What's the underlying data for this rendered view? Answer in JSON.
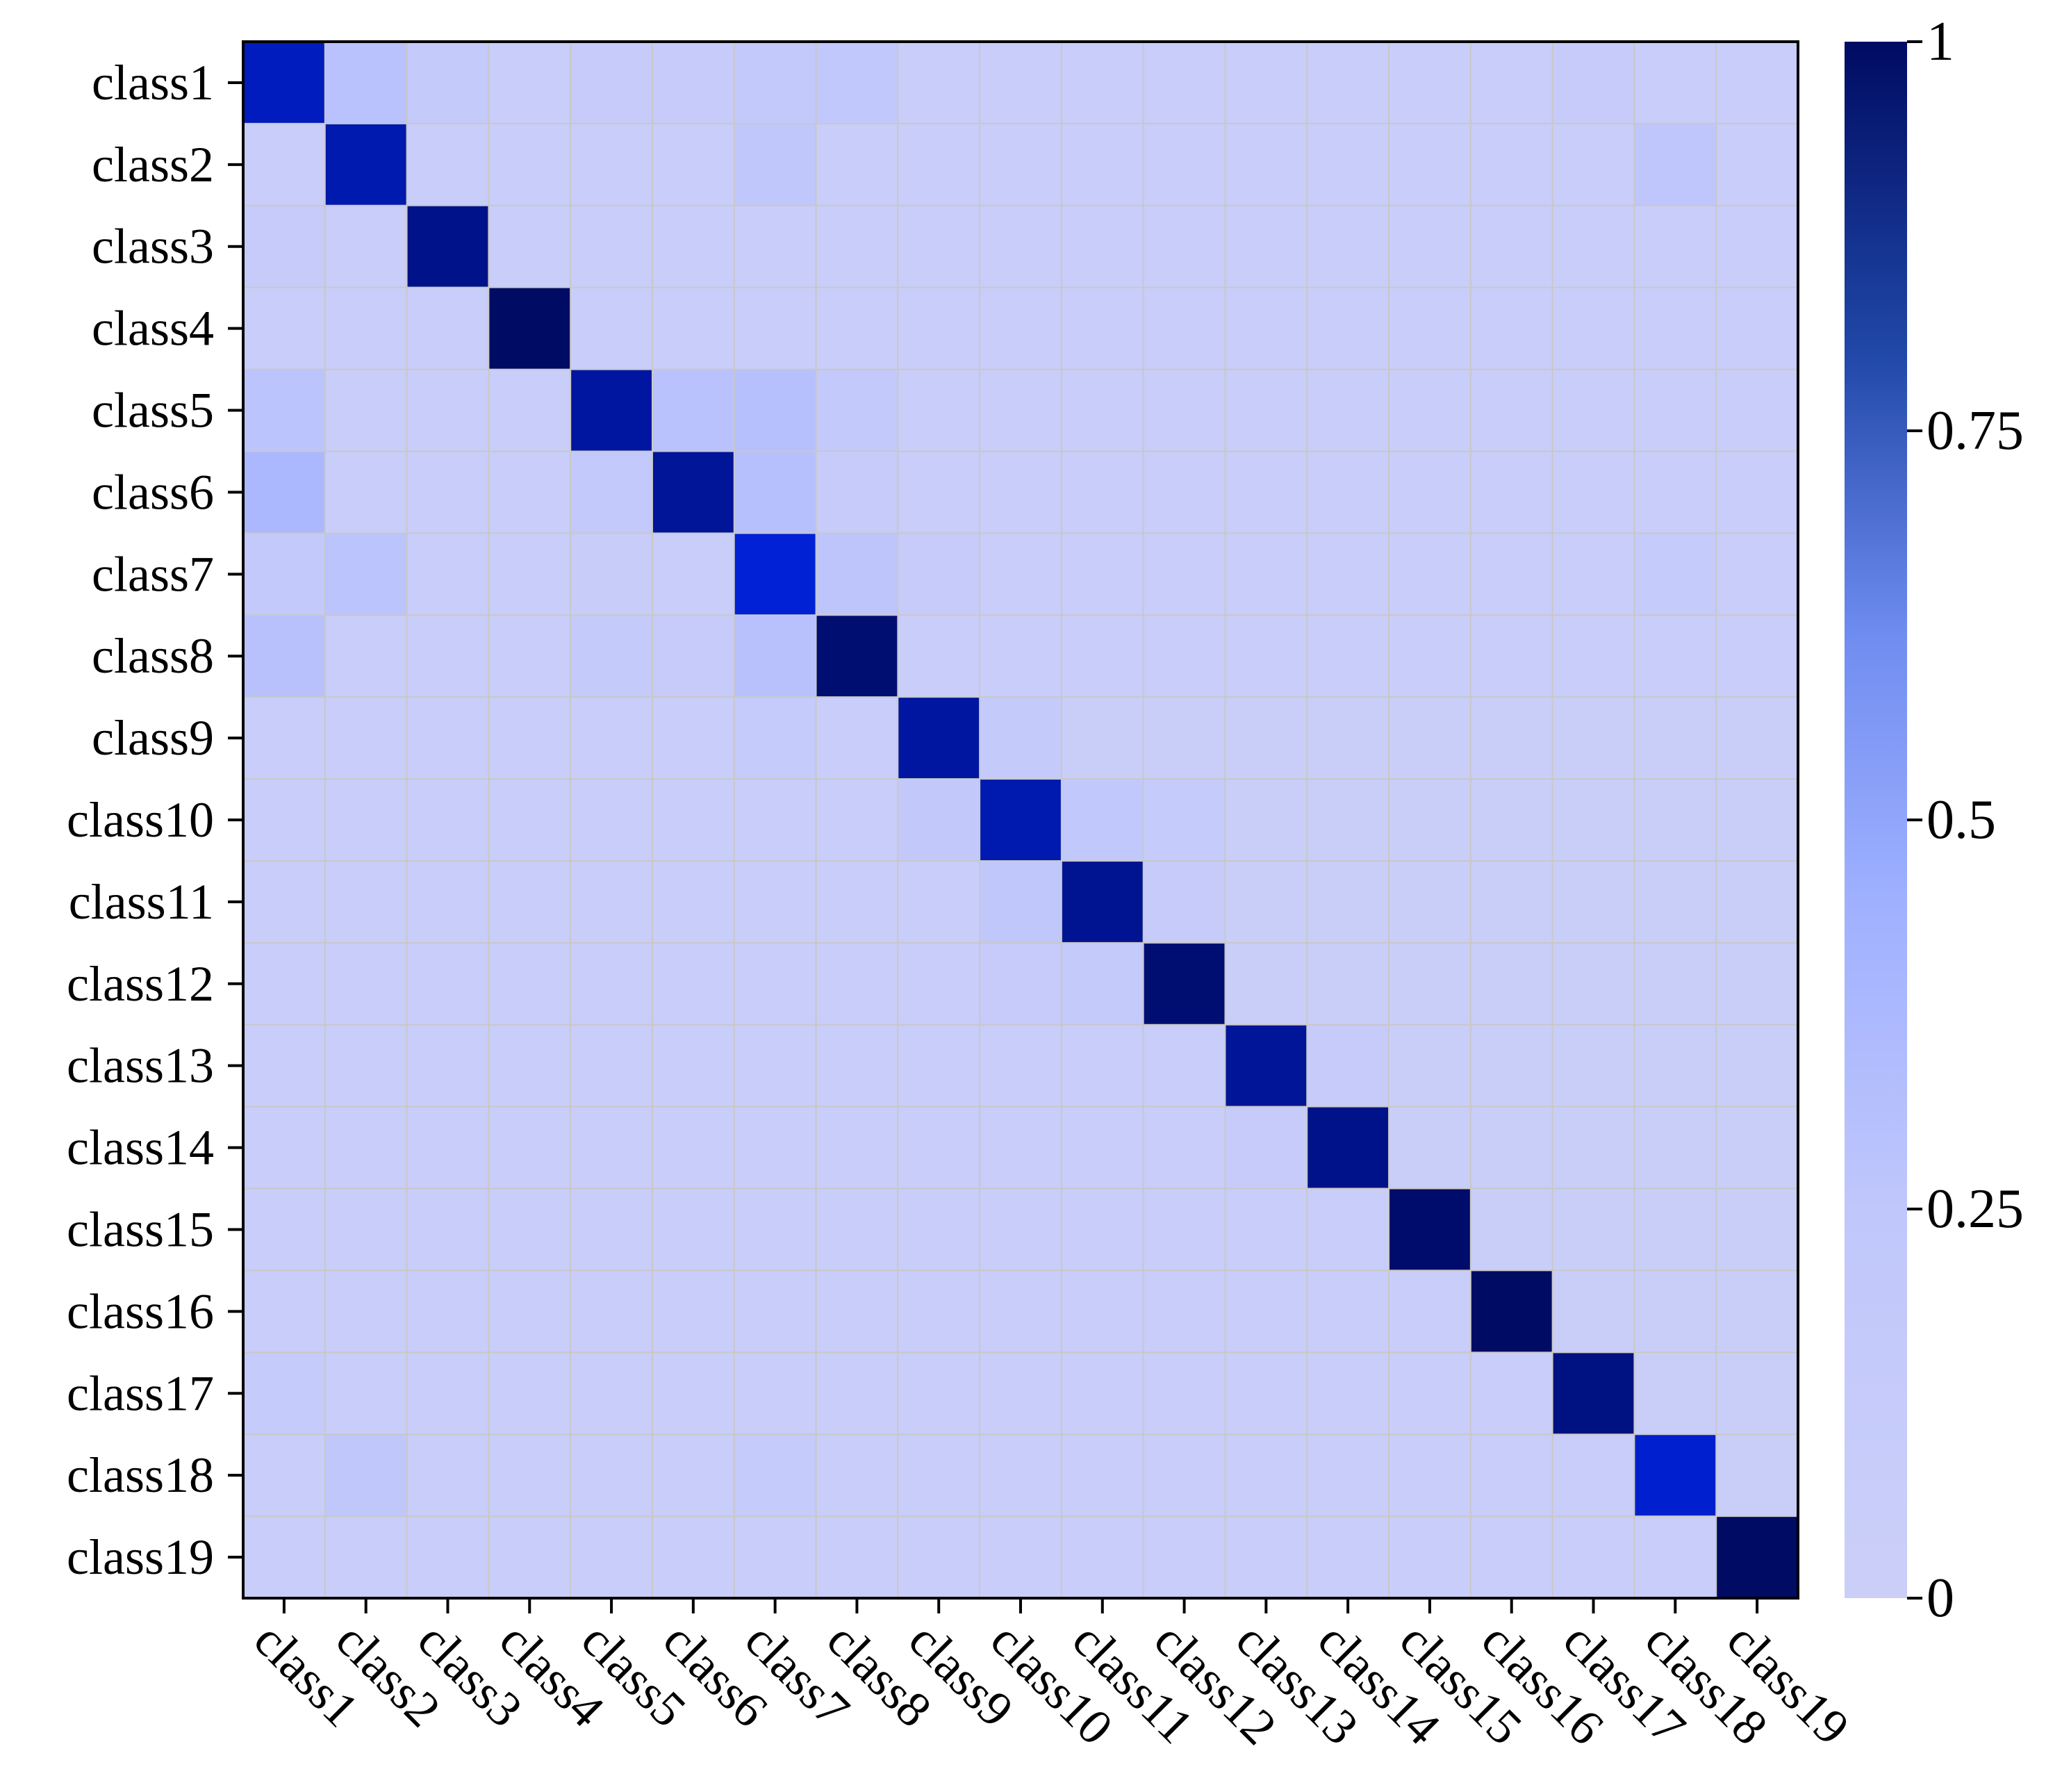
{
  "chart_data": {
    "type": "heatmap",
    "title": "",
    "xlabel": "",
    "ylabel": "",
    "x_categories": [
      "class1",
      "class2",
      "class3",
      "class4",
      "class5",
      "class6",
      "class7",
      "class8",
      "class9",
      "class10",
      "class11",
      "class12",
      "class13",
      "class14",
      "class15",
      "class16",
      "class17",
      "class18",
      "class19"
    ],
    "y_categories": [
      "class1",
      "class2",
      "class3",
      "class4",
      "class5",
      "class6",
      "class7",
      "class8",
      "class9",
      "class10",
      "class11",
      "class12",
      "class13",
      "class14",
      "class15",
      "class16",
      "class17",
      "class18",
      "class19"
    ],
    "values": [
      [
        0.88,
        0.29,
        0.17,
        0.06,
        0.12,
        0.12,
        0.19,
        0.23,
        0.05,
        0.05,
        0.05,
        0.05,
        0.05,
        0.05,
        0.05,
        0.05,
        0.12,
        0.05,
        0.05
      ],
      [
        0.07,
        0.9,
        0.06,
        0.06,
        0.06,
        0.06,
        0.25,
        0.06,
        0.05,
        0.05,
        0.05,
        0.05,
        0.05,
        0.05,
        0.05,
        0.05,
        0.06,
        0.26,
        0.05
      ],
      [
        0.12,
        0.06,
        0.95,
        0.06,
        0.05,
        0.05,
        0.05,
        0.05,
        0.05,
        0.05,
        0.05,
        0.05,
        0.05,
        0.05,
        0.05,
        0.05,
        0.05,
        0.05,
        0.05
      ],
      [
        0.06,
        0.05,
        0.05,
        1.0,
        0.05,
        0.05,
        0.05,
        0.05,
        0.05,
        0.05,
        0.05,
        0.05,
        0.05,
        0.05,
        0.05,
        0.05,
        0.05,
        0.05,
        0.05
      ],
      [
        0.28,
        0.05,
        0.05,
        0.05,
        0.92,
        0.29,
        0.31,
        0.18,
        0.05,
        0.05,
        0.05,
        0.05,
        0.05,
        0.05,
        0.05,
        0.05,
        0.05,
        0.05,
        0.05
      ],
      [
        0.38,
        0.05,
        0.05,
        0.05,
        0.18,
        0.93,
        0.31,
        0.12,
        0.05,
        0.05,
        0.05,
        0.05,
        0.05,
        0.05,
        0.05,
        0.05,
        0.05,
        0.05,
        0.05
      ],
      [
        0.19,
        0.28,
        0.06,
        0.06,
        0.1,
        0.07,
        0.85,
        0.27,
        0.12,
        0.05,
        0.05,
        0.05,
        0.05,
        0.05,
        0.05,
        0.05,
        0.05,
        0.13,
        0.05
      ],
      [
        0.3,
        0.05,
        0.05,
        0.05,
        0.17,
        0.12,
        0.3,
        0.98,
        0.05,
        0.05,
        0.05,
        0.05,
        0.05,
        0.05,
        0.05,
        0.05,
        0.05,
        0.05,
        0.05
      ],
      [
        0.05,
        0.05,
        0.05,
        0.05,
        0.05,
        0.05,
        0.14,
        0.05,
        0.92,
        0.17,
        0.04,
        0.04,
        0.04,
        0.04,
        0.04,
        0.04,
        0.04,
        0.04,
        0.04
      ],
      [
        0.05,
        0.05,
        0.05,
        0.05,
        0.05,
        0.05,
        0.05,
        0.05,
        0.2,
        0.9,
        0.22,
        0.13,
        0.04,
        0.04,
        0.04,
        0.04,
        0.04,
        0.04,
        0.04
      ],
      [
        0.05,
        0.05,
        0.05,
        0.05,
        0.05,
        0.05,
        0.05,
        0.05,
        0.05,
        0.24,
        0.94,
        0.11,
        0.04,
        0.04,
        0.04,
        0.04,
        0.04,
        0.04,
        0.04
      ],
      [
        0.05,
        0.05,
        0.05,
        0.05,
        0.05,
        0.05,
        0.05,
        0.05,
        0.05,
        0.12,
        0.15,
        0.98,
        0.04,
        0.04,
        0.04,
        0.04,
        0.04,
        0.04,
        0.04
      ],
      [
        0.05,
        0.05,
        0.05,
        0.05,
        0.05,
        0.05,
        0.05,
        0.05,
        0.05,
        0.05,
        0.05,
        0.05,
        0.93,
        0.11,
        0.04,
        0.04,
        0.04,
        0.04,
        0.04
      ],
      [
        0.05,
        0.05,
        0.05,
        0.05,
        0.05,
        0.05,
        0.05,
        0.06,
        0.06,
        0.06,
        0.06,
        0.05,
        0.12,
        0.95,
        0.04,
        0.04,
        0.04,
        0.04,
        0.04
      ],
      [
        0.05,
        0.05,
        0.05,
        0.05,
        0.05,
        0.05,
        0.05,
        0.05,
        0.05,
        0.05,
        0.05,
        0.05,
        0.05,
        0.05,
        0.99,
        0.04,
        0.04,
        0.04,
        0.04
      ],
      [
        0.05,
        0.05,
        0.05,
        0.05,
        0.05,
        0.05,
        0.05,
        0.05,
        0.05,
        0.05,
        0.05,
        0.05,
        0.05,
        0.05,
        0.05,
        1.0,
        0.04,
        0.04,
        0.04
      ],
      [
        0.13,
        0.05,
        0.05,
        0.05,
        0.05,
        0.05,
        0.05,
        0.05,
        0.05,
        0.05,
        0.05,
        0.05,
        0.05,
        0.05,
        0.05,
        0.05,
        0.96,
        0.04,
        0.04
      ],
      [
        0.05,
        0.25,
        0.05,
        0.05,
        0.05,
        0.05,
        0.14,
        0.05,
        0.05,
        0.05,
        0.05,
        0.05,
        0.05,
        0.05,
        0.05,
        0.05,
        0.05,
        0.86,
        0.04
      ],
      [
        0.05,
        0.05,
        0.05,
        0.05,
        0.05,
        0.05,
        0.05,
        0.05,
        0.05,
        0.05,
        0.05,
        0.05,
        0.05,
        0.05,
        0.05,
        0.05,
        0.05,
        0.05,
        1.0
      ]
    ],
    "value_range": [
      0,
      1
    ],
    "colorbar": {
      "ticks": [
        0,
        0.25,
        0.5,
        0.75,
        1
      ],
      "tick_labels": [
        "0",
        "0.25",
        "0.5",
        "0.75",
        "1"
      ],
      "colors": {
        "low": "#cbcff8",
        "mid_low": "#9fb0ff",
        "mid": "#6f8cf0",
        "high_mid": "#2048a8",
        "high": "#000b63"
      },
      "placement": "right"
    },
    "grid": true,
    "grid_color": "#c8c8c8",
    "legend": "none"
  }
}
